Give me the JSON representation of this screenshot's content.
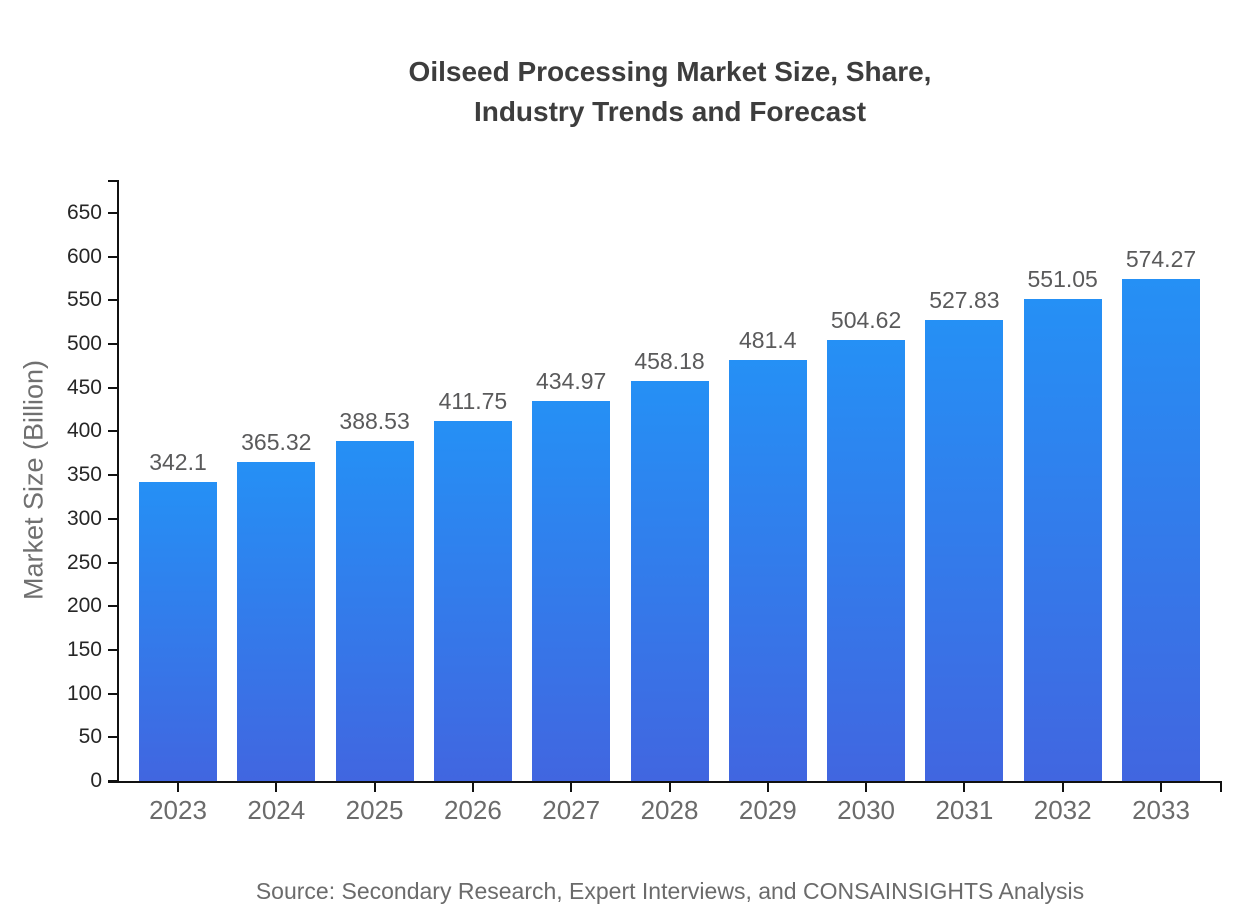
{
  "chart": {
    "title_line1": "Oilseed Processing Market Size, Share,",
    "title_line2": "Industry Trends and Forecast",
    "source": "Source: Secondary Research, Expert Interviews, and CONSAINSIGHTS Analysis"
  },
  "chart_data": {
    "type": "bar",
    "title": "Oilseed Processing Market Size, Share, Industry Trends and Forecast",
    "categories": [
      "2023",
      "2024",
      "2025",
      "2026",
      "2027",
      "2028",
      "2029",
      "2030",
      "2031",
      "2032",
      "2033"
    ],
    "values": [
      342.1,
      365.32,
      388.53,
      411.75,
      434.97,
      458.18,
      481.4,
      504.62,
      527.83,
      551.05,
      574.27
    ],
    "value_labels": [
      "342.1",
      "365.32",
      "388.53",
      "411.75",
      "434.97",
      "458.18",
      "481.4",
      "504.62",
      "527.83",
      "551.05",
      "574.27"
    ],
    "xlabel": "",
    "ylabel": "Market Size (Billion)",
    "ylim": [
      0,
      650
    ],
    "ytick_step": 50,
    "grid": false,
    "legend": false,
    "colors": {
      "bar_gradient_top": "#2590F5",
      "bar_gradient_bottom": "#4166E0",
      "axis": "#111111",
      "title_text": "#3d3d3d",
      "y_tick_text": "#262626",
      "x_tick_text": "#6b6b6b",
      "value_label_text": "#5a5a5b",
      "source_text": "#6b6b6b"
    }
  }
}
